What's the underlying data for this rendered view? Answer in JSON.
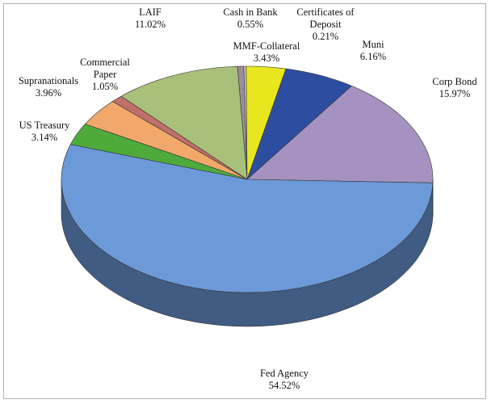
{
  "chart_data": {
    "type": "pie",
    "categories": [
      "Cash in Bank",
      "Certificates of Deposit",
      "MMF-Collateral",
      "Muni",
      "Corp Bond",
      "Fed Agency",
      "US Treasury",
      "Supranationals",
      "Commercial Paper",
      "LAIF"
    ],
    "values": [
      0.55,
      0.21,
      3.43,
      6.16,
      15.97,
      54.52,
      3.14,
      3.96,
      1.05,
      11.02
    ],
    "value_labels": [
      "0.55%",
      "0.21%",
      "3.43%",
      "6.16%",
      "15.97%",
      "54.52%",
      "3.14%",
      "3.96%",
      "1.05%",
      "11.02%"
    ],
    "colors": [
      "#9a8f99",
      "#c8c8c8",
      "#e8e61e",
      "#2d4ea0",
      "#a692c0",
      "#6c9ad8",
      "#4faa3c",
      "#f2a86a",
      "#c0706a",
      "#a9c07a"
    ]
  }
}
